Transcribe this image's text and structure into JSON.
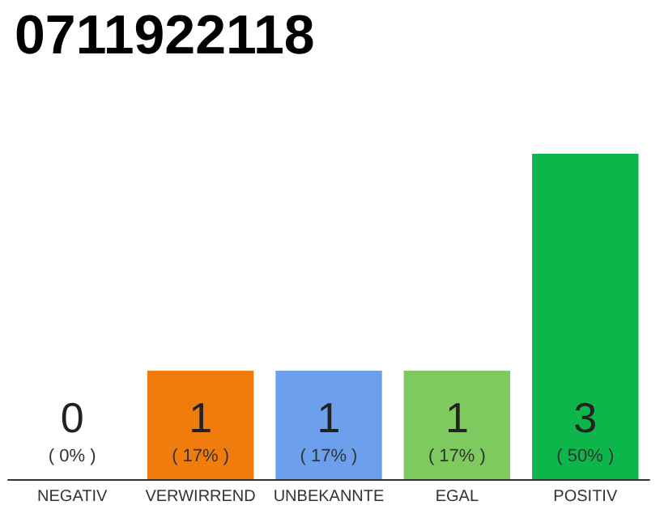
{
  "chart_data": {
    "type": "bar",
    "title": "0711922118",
    "categories": [
      "NEGATIV",
      "VERWIRREND",
      "UNBEKANNTE",
      "EGAL",
      "POSITIV"
    ],
    "values": [
      0,
      1,
      1,
      1,
      3
    ],
    "colors": [
      "#cccccc",
      "#f07c0e",
      "#6ca0ec",
      "#7fca5f",
      "#0db64a"
    ],
    "value_labels": [
      "0\n( 0% )",
      "1\n( 17% )",
      "1\n( 17% )",
      "1\n( 17% )",
      "3\n( 50% )"
    ]
  }
}
